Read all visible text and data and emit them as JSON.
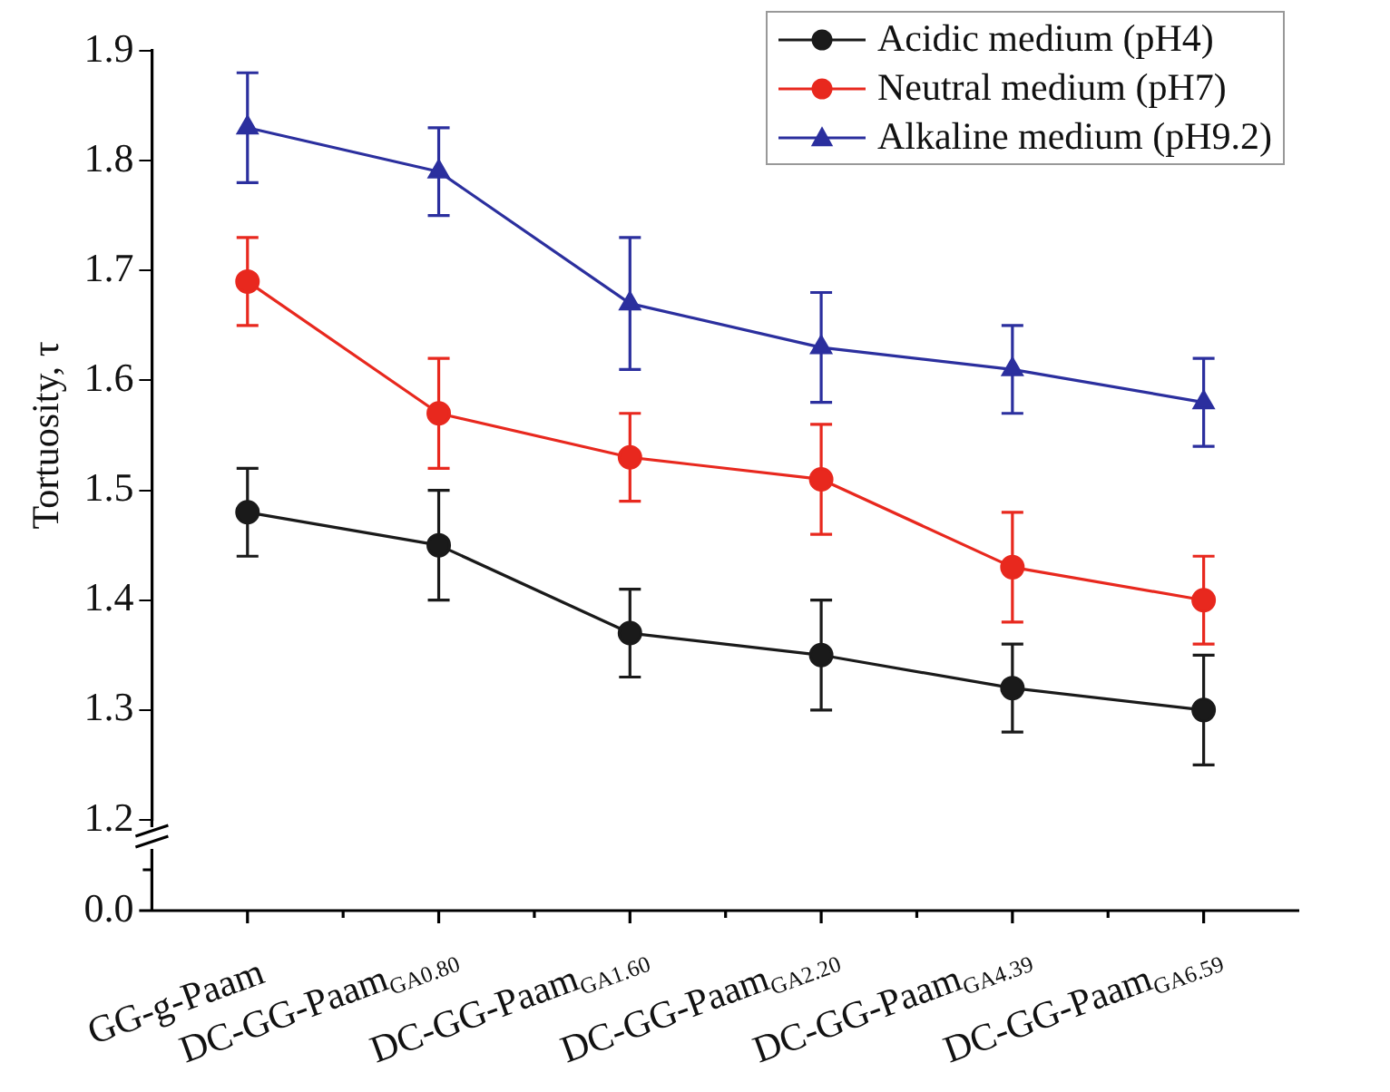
{
  "chart_data": {
    "type": "line",
    "ylabel": "Tortuosity, τ",
    "categories": [
      "GG-g-Paam",
      "DC-GG-Paam$_{GA0.80}$",
      "DC-GG-Paam$_{GA1.60}$",
      "DC-GG-Paam$_{GA2.20}$",
      "DC-GG-Paam$_{GA4.39}$",
      "DC-GG-Paam$_{GA6.59}$"
    ],
    "series": [
      {
        "name": "Acidic medium (pH4)",
        "color": "#1a1a1a",
        "marker": "circle",
        "values": [
          1.48,
          1.45,
          1.37,
          1.35,
          1.32,
          1.3
        ],
        "errors": [
          0.04,
          0.05,
          0.04,
          0.05,
          0.04,
          0.05
        ]
      },
      {
        "name": "Neutral medium (pH7)",
        "color": "#e8281e",
        "marker": "circle",
        "values": [
          1.69,
          1.57,
          1.53,
          1.51,
          1.43,
          1.4
        ],
        "errors": [
          0.04,
          0.05,
          0.04,
          0.05,
          0.05,
          0.04
        ]
      },
      {
        "name": "Alkaline medium (pH9.2)",
        "color": "#2b2f9e",
        "marker": "triangle",
        "values": [
          1.83,
          1.79,
          1.67,
          1.63,
          1.61,
          1.58
        ],
        "errors": [
          0.05,
          0.04,
          0.06,
          0.05,
          0.04,
          0.04
        ]
      }
    ],
    "ylim": [
      1.2,
      1.9
    ],
    "yticks": [
      1.2,
      1.3,
      1.4,
      1.5,
      1.6,
      1.7,
      1.8,
      1.9
    ],
    "annotations": [
      "0.0"
    ],
    "grid": false,
    "legend": "top right",
    "line_style": "solid"
  }
}
